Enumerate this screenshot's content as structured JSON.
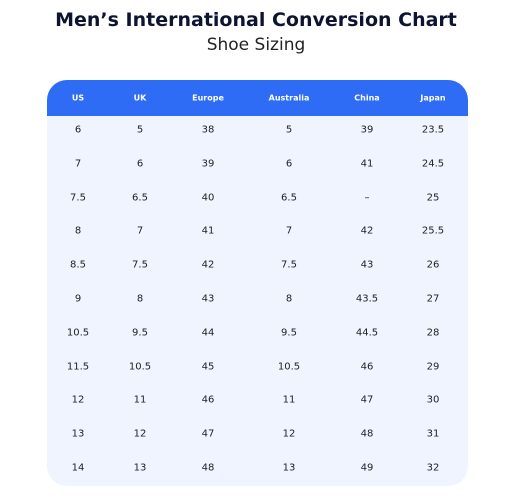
{
  "header": {
    "title": "Men’s International Conversion Chart",
    "subtitle": "Shoe Sizing"
  },
  "table": {
    "columns": [
      "US",
      "UK",
      "Europe",
      "Australia",
      "China",
      "Japan"
    ],
    "rows": [
      [
        "6",
        "5",
        "38",
        "5",
        "39",
        "23.5"
      ],
      [
        "7",
        "6",
        "39",
        "6",
        "41",
        "24.5"
      ],
      [
        "7.5",
        "6.5",
        "40",
        "6.5",
        "–",
        "25"
      ],
      [
        "8",
        "7",
        "41",
        "7",
        "42",
        "25.5"
      ],
      [
        "8.5",
        "7.5",
        "42",
        "7.5",
        "43",
        "26"
      ],
      [
        "9",
        "8",
        "43",
        "8",
        "43.5",
        "27"
      ],
      [
        "10.5",
        "9.5",
        "44",
        "9.5",
        "44.5",
        "28"
      ],
      [
        "11.5",
        "10.5",
        "45",
        "10.5",
        "46",
        "29"
      ],
      [
        "12",
        "11",
        "46",
        "11",
        "47",
        "30"
      ],
      [
        "13",
        "12",
        "47",
        "12",
        "48",
        "31"
      ],
      [
        "14",
        "13",
        "48",
        "13",
        "49",
        "32"
      ]
    ]
  }
}
